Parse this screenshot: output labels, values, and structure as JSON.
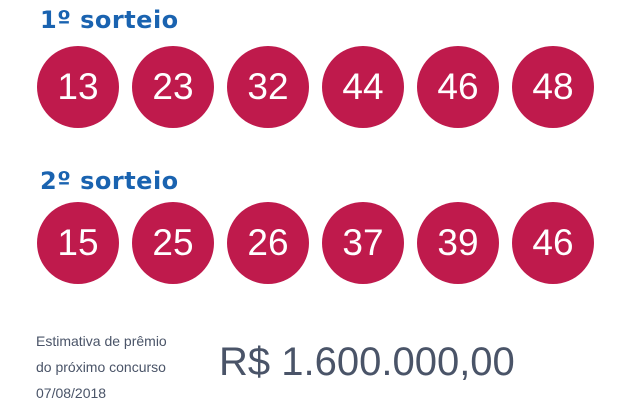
{
  "draws": [
    {
      "title": "1º sorteio",
      "numbers": [
        "13",
        "23",
        "32",
        "44",
        "46",
        "48"
      ]
    },
    {
      "title": "2º sorteio",
      "numbers": [
        "15",
        "25",
        "26",
        "37",
        "39",
        "46"
      ]
    }
  ],
  "prize": {
    "line1": "Estimativa de prêmio",
    "line2": "do próximo concurso",
    "date": "07/08/2018",
    "value": "R$ 1.600.000,00"
  },
  "colors": {
    "ball": "#bf1a4c",
    "title": "#1a63b0",
    "text": "#4a5468"
  }
}
